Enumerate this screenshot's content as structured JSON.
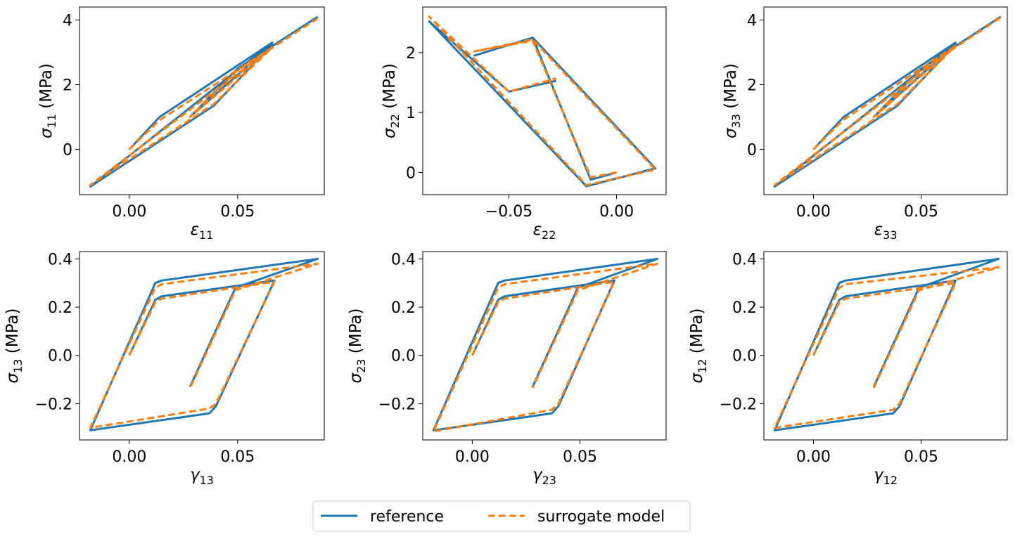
{
  "colors": {
    "reference": "#1f77b4",
    "surrogate": "#ff7f0e"
  },
  "legend": {
    "reference_label": "reference",
    "surrogate_label": "surrogate model"
  },
  "chart_data": [
    {
      "type": "line",
      "xlabel": {
        "sym": "ε",
        "sub": "11"
      },
      "ylabel": {
        "sym": "σ",
        "sub": "11",
        "unit": " (MPa)"
      },
      "xlim": [
        -0.023,
        0.09
      ],
      "ylim": [
        -1.4,
        4.4
      ],
      "xticks": [
        0.0,
        0.05
      ],
      "xtick_labels": [
        "0.00",
        "0.05"
      ],
      "yticks": [
        0,
        2,
        4
      ],
      "ytick_labels": [
        "0",
        "2",
        "4"
      ],
      "series": [
        {
          "name": "reference",
          "style": "solid",
          "x": [
            0.0,
            0.014,
            0.066,
            -0.018,
            0.039,
            0.066,
            0.028,
            0.05,
            0.087
          ],
          "y": [
            0.0,
            1.0,
            3.3,
            -1.15,
            1.35,
            3.25,
            1.0,
            2.5,
            4.1
          ]
        },
        {
          "name": "surrogate model",
          "style": "dashed",
          "x": [
            0.0,
            0.014,
            0.066,
            -0.018,
            0.039,
            0.066,
            0.028,
            0.05,
            0.087
          ],
          "y": [
            0.0,
            0.9,
            3.15,
            -1.1,
            1.4,
            3.15,
            1.0,
            2.45,
            4.05
          ]
        }
      ]
    },
    {
      "type": "line",
      "xlabel": {
        "sym": "ε",
        "sub": "22"
      },
      "ylabel": {
        "sym": "σ",
        "sub": "22",
        "unit": " (MPa)"
      },
      "xlim": [
        -0.09,
        0.023
      ],
      "ylim": [
        -0.37,
        2.76
      ],
      "xticks": [
        -0.05,
        0.0
      ],
      "xtick_labels": [
        "−0.05",
        "0.00"
      ],
      "yticks": [
        0,
        1,
        2
      ],
      "ytick_labels": [
        "0",
        "1",
        "2"
      ],
      "series": [
        {
          "name": "reference",
          "style": "solid",
          "x": [
            0.0,
            -0.012,
            -0.039,
            -0.066,
            -0.039,
            -0.039,
            0.018,
            -0.014,
            -0.087,
            -0.087,
            -0.05,
            -0.028
          ],
          "y": [
            0.0,
            -0.12,
            2.25,
            1.95,
            2.25,
            2.25,
            0.07,
            -0.23,
            2.52,
            2.52,
            1.35,
            1.53
          ]
        },
        {
          "name": "surrogate model",
          "style": "dashed",
          "x": [
            0.0,
            -0.012,
            -0.039,
            -0.066,
            -0.039,
            -0.039,
            0.018,
            -0.014,
            -0.087,
            -0.087,
            -0.05,
            -0.028
          ],
          "y": [
            0.0,
            -0.08,
            2.2,
            2.02,
            2.22,
            2.22,
            0.05,
            -0.21,
            2.6,
            2.6,
            1.35,
            1.57
          ]
        }
      ]
    },
    {
      "type": "line",
      "xlabel": {
        "sym": "ε",
        "sub": "33"
      },
      "ylabel": {
        "sym": "σ",
        "sub": "33",
        "unit": " (MPa)"
      },
      "xlim": [
        -0.023,
        0.09
      ],
      "ylim": [
        -1.4,
        4.4
      ],
      "xticks": [
        0.0,
        0.05
      ],
      "xtick_labels": [
        "0.00",
        "0.05"
      ],
      "yticks": [
        0,
        2,
        4
      ],
      "ytick_labels": [
        "0",
        "2",
        "4"
      ],
      "series": [
        {
          "name": "reference",
          "style": "solid",
          "x": [
            0.0,
            0.014,
            0.066,
            -0.018,
            0.039,
            0.066,
            0.028,
            0.05,
            0.087
          ],
          "y": [
            0.0,
            1.0,
            3.3,
            -1.15,
            1.35,
            3.25,
            1.0,
            2.5,
            4.1
          ]
        },
        {
          "name": "surrogate model",
          "style": "dashed",
          "x": [
            0.0,
            0.014,
            0.066,
            -0.018,
            0.039,
            0.066,
            0.028,
            0.05,
            0.087
          ],
          "y": [
            0.0,
            0.92,
            3.2,
            -1.1,
            1.4,
            3.2,
            1.0,
            2.45,
            4.08
          ]
        }
      ]
    },
    {
      "type": "line",
      "xlabel": {
        "sym": "γ",
        "sub": "13"
      },
      "ylabel": {
        "sym": "σ",
        "sub": "13",
        "unit": " (MPa)"
      },
      "xlim": [
        -0.023,
        0.09
      ],
      "ylim": [
        -0.35,
        0.43
      ],
      "xticks": [
        0.0,
        0.05
      ],
      "xtick_labels": [
        "0.00",
        "0.05"
      ],
      "yticks": [
        -0.2,
        0.0,
        0.2,
        0.4
      ],
      "ytick_labels": [
        "−0.2",
        "0.0",
        "0.2",
        "0.4"
      ],
      "series": [
        {
          "name": "reference",
          "style": "solid",
          "x": [
            0.0,
            0.012,
            0.015,
            0.067,
            0.04,
            0.037,
            -0.018,
            0.012,
            0.015,
            0.087,
            0.049,
            0.028
          ],
          "y": [
            0.0,
            0.23,
            0.245,
            0.31,
            -0.21,
            -0.24,
            -0.31,
            0.3,
            0.31,
            0.4,
            0.28,
            -0.13
          ]
        },
        {
          "name": "surrogate model",
          "style": "dashed",
          "x": [
            0.0,
            0.012,
            0.015,
            0.067,
            0.04,
            0.037,
            -0.018,
            0.012,
            0.015,
            0.087,
            0.049,
            0.028
          ],
          "y": [
            0.0,
            0.22,
            0.235,
            0.305,
            -0.2,
            -0.22,
            -0.3,
            0.28,
            0.295,
            0.38,
            0.27,
            -0.135
          ]
        }
      ]
    },
    {
      "type": "line",
      "xlabel": {
        "sym": "γ",
        "sub": "23"
      },
      "ylabel": {
        "sym": "σ",
        "sub": "23",
        "unit": " (MPa)"
      },
      "xlim": [
        -0.023,
        0.09
      ],
      "ylim": [
        -0.35,
        0.43
      ],
      "xticks": [
        0.0,
        0.05
      ],
      "xtick_labels": [
        "0.00",
        "0.05"
      ],
      "yticks": [
        -0.2,
        0.0,
        0.2,
        0.4
      ],
      "ytick_labels": [
        "−0.2",
        "0.0",
        "0.2",
        "0.4"
      ],
      "series": [
        {
          "name": "reference",
          "style": "solid",
          "x": [
            0.0,
            0.012,
            0.015,
            0.066,
            0.04,
            0.037,
            -0.018,
            0.012,
            0.015,
            0.086,
            0.049,
            0.028
          ],
          "y": [
            0.0,
            0.23,
            0.245,
            0.31,
            -0.21,
            -0.24,
            -0.31,
            0.3,
            0.31,
            0.4,
            0.28,
            -0.13
          ]
        },
        {
          "name": "surrogate model",
          "style": "dashed",
          "x": [
            0.0,
            0.012,
            0.015,
            0.066,
            0.04,
            0.037,
            -0.018,
            0.012,
            0.015,
            0.086,
            0.049,
            0.028
          ],
          "y": [
            0.0,
            0.22,
            0.235,
            0.305,
            -0.2,
            -0.225,
            -0.315,
            0.28,
            0.295,
            0.38,
            0.27,
            -0.135
          ]
        }
      ]
    },
    {
      "type": "line",
      "xlabel": {
        "sym": "γ",
        "sub": "12"
      },
      "ylabel": {
        "sym": "σ",
        "sub": "12",
        "unit": " (MPa)"
      },
      "xlim": [
        -0.023,
        0.09
      ],
      "ylim": [
        -0.35,
        0.43
      ],
      "xticks": [
        0.0,
        0.05
      ],
      "xtick_labels": [
        "0.00",
        "0.05"
      ],
      "yticks": [
        -0.2,
        0.0,
        0.2,
        0.4
      ],
      "ytick_labels": [
        "−0.2",
        "0.0",
        "0.2",
        "0.4"
      ],
      "series": [
        {
          "name": "reference",
          "style": "solid",
          "x": [
            0.0,
            0.012,
            0.015,
            0.066,
            0.04,
            0.037,
            -0.018,
            0.012,
            0.015,
            0.086,
            0.049,
            0.028
          ],
          "y": [
            0.0,
            0.23,
            0.245,
            0.31,
            -0.21,
            -0.24,
            -0.31,
            0.3,
            0.31,
            0.4,
            0.28,
            -0.13
          ]
        },
        {
          "name": "surrogate model",
          "style": "dashed",
          "x": [
            0.0,
            0.012,
            0.015,
            0.066,
            0.04,
            0.037,
            -0.018,
            0.012,
            0.015,
            0.086,
            0.049,
            0.028
          ],
          "y": [
            0.0,
            0.22,
            0.235,
            0.3,
            -0.2,
            -0.225,
            -0.3,
            0.28,
            0.295,
            0.365,
            0.27,
            -0.135
          ]
        }
      ]
    }
  ]
}
